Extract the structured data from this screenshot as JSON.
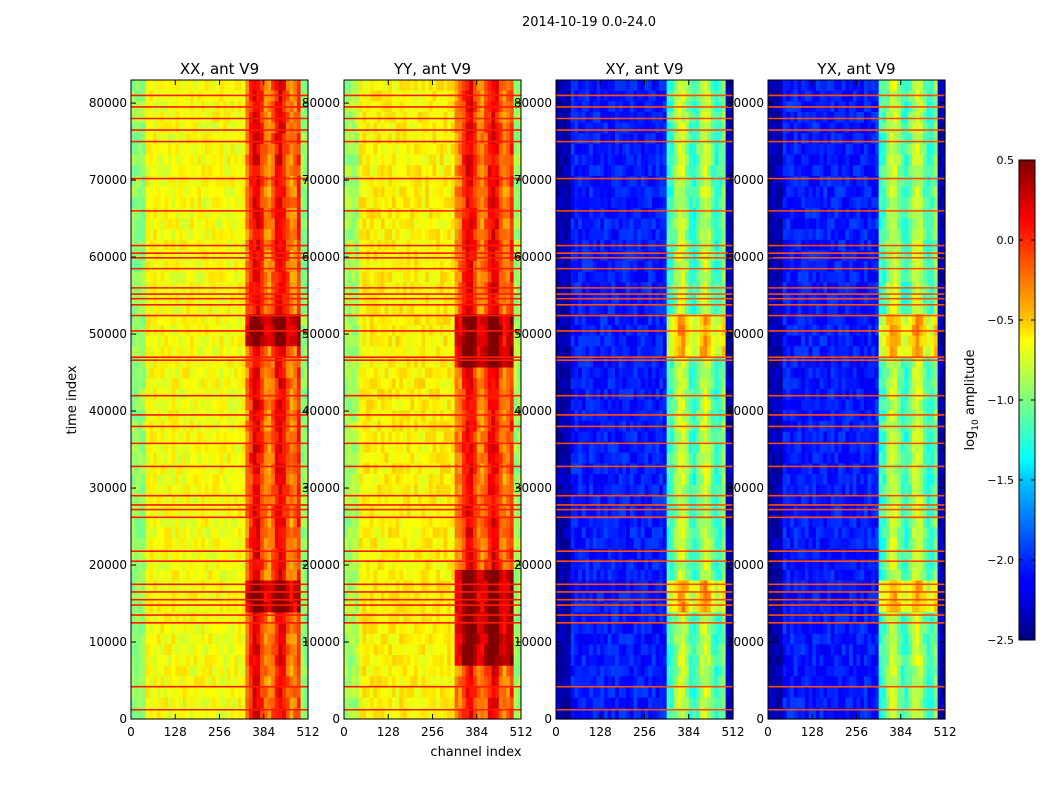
{
  "title": "2014-10-19 0.0-24.0",
  "chart_data": {
    "type": "heatmap",
    "suptitle": "2014-10-19 0.0-24.0",
    "xlabel": "channel index",
    "ylabel": "time index",
    "xlim": [
      0,
      512
    ],
    "ylim": [
      0,
      83000
    ],
    "xticks": [
      0,
      128,
      256,
      384,
      512
    ],
    "yticks": [
      0,
      10000,
      20000,
      30000,
      40000,
      50000,
      60000,
      70000,
      80000
    ],
    "colormap": "jet",
    "panels": [
      {
        "title": "XX, ant V9",
        "base_level": -0.65,
        "feature_level": -0.05,
        "feature_channels": [
          330,
          490
        ],
        "hot_rows": [
          48000,
          52000
        ],
        "hot_rows2": [
          14000,
          18000
        ]
      },
      {
        "title": "YY, ant V9",
        "base_level": -0.6,
        "feature_level": -0.05,
        "feature_channels": [
          325,
          495
        ],
        "hot_rows": [
          46000,
          53000
        ],
        "hot_rows2": [
          7000,
          19000
        ]
      },
      {
        "title": "XY, ant V9",
        "base_level": -2.05,
        "feature_level": -1.0,
        "feature_channels": [
          325,
          495
        ],
        "hot_rows": [
          47000,
          52500
        ],
        "hot_rows2": [
          14000,
          17500
        ]
      },
      {
        "title": "YX, ant V9",
        "base_level": -2.05,
        "feature_level": -1.0,
        "feature_channels": [
          325,
          495
        ],
        "hot_rows": [
          47000,
          52500
        ],
        "hot_rows2": [
          14000,
          17500
        ]
      }
    ],
    "flagged_rows": [
      1200,
      4200,
      12500,
      13500,
      14800,
      15500,
      16500,
      17500,
      20500,
      21800,
      26200,
      27200,
      27800,
      29000,
      32800,
      35800,
      38000,
      39500,
      42000,
      46600,
      47000,
      50400,
      52400,
      53800,
      54600,
      55200,
      56000,
      58500,
      59900,
      60500,
      61500,
      66000,
      70200,
      75000,
      76500,
      78000,
      79500,
      81000
    ],
    "colorbar": {
      "label_prefix": "log",
      "label_sub": "10",
      "label_suffix": " amplitude",
      "range": [
        -2.5,
        0.5
      ],
      "ticks": [
        0.5,
        0.0,
        -0.5,
        -1.0,
        -1.5,
        -2.0,
        -2.5
      ]
    }
  }
}
